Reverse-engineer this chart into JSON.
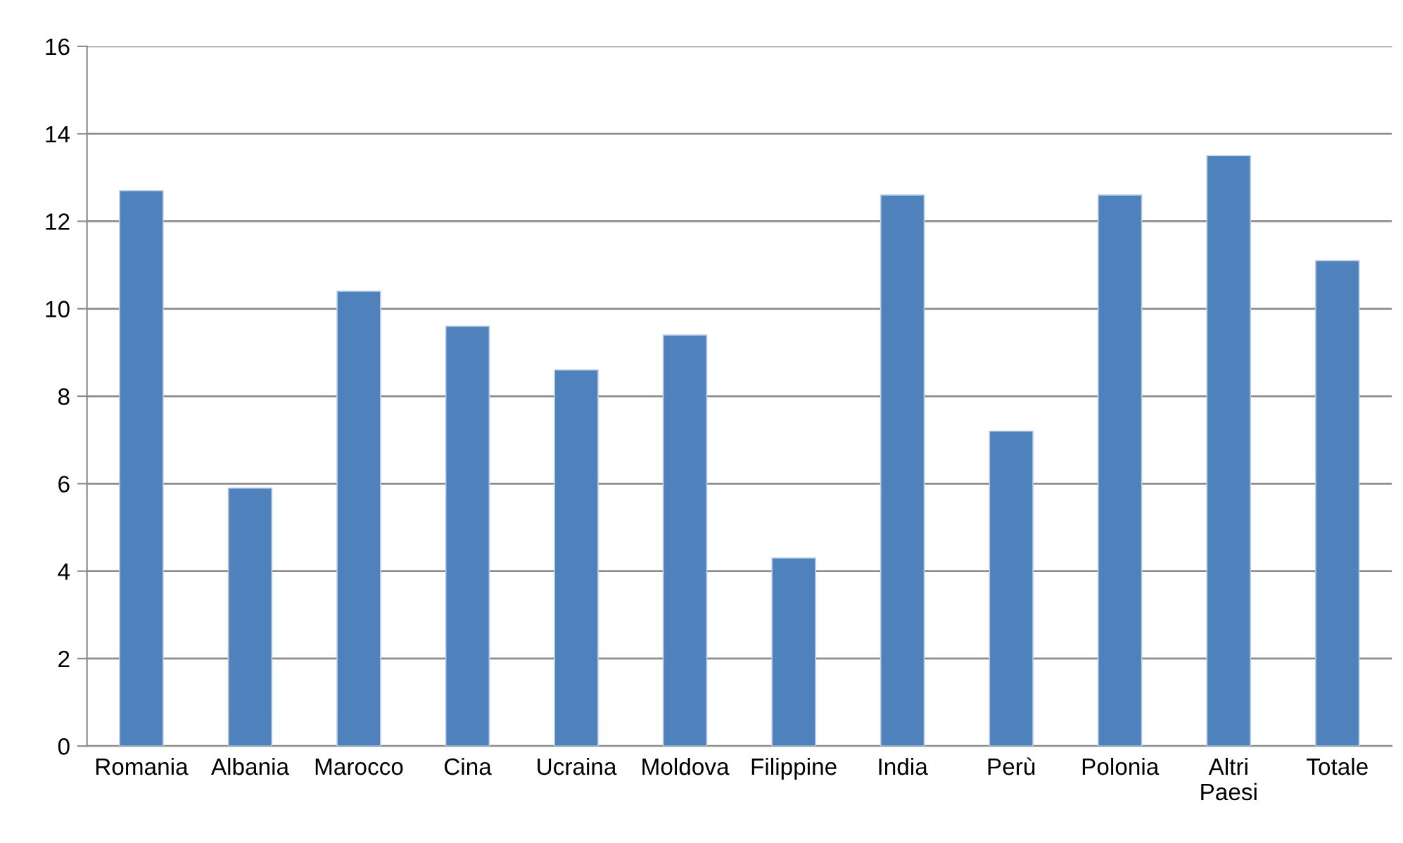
{
  "chart_data": {
    "type": "bar",
    "categories": [
      "Romania",
      "Albania",
      "Marocco",
      "Cina",
      "Ucraina",
      "Moldova",
      "Filippine",
      "India",
      "Perù",
      "Polonia",
      "Altri\nPaesi",
      "Totale"
    ],
    "values": [
      12.7,
      5.9,
      10.4,
      9.6,
      8.6,
      9.4,
      4.3,
      12.6,
      7.2,
      12.6,
      13.5,
      11.1
    ],
    "color": "#4f81bd",
    "ylim": [
      0,
      16
    ],
    "yticks": [
      0,
      2,
      4,
      6,
      8,
      10,
      12,
      14,
      16
    ],
    "grid": "y",
    "legend": false
  }
}
